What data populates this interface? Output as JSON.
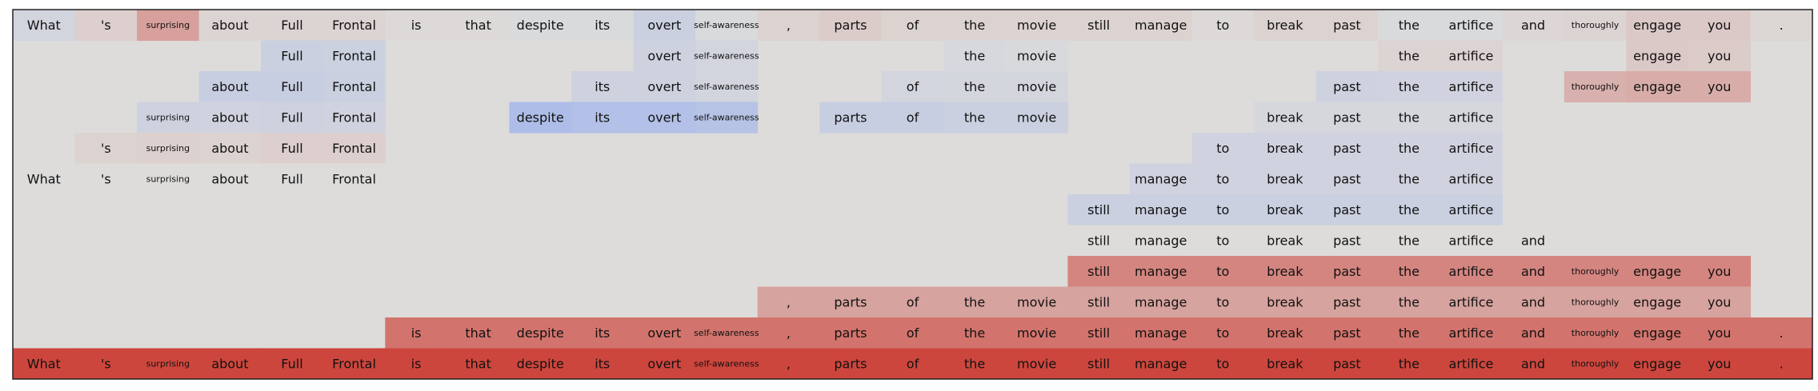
{
  "chart_data": {
    "type": "heatmap",
    "title": "",
    "xlabel": "",
    "ylabel": "",
    "grid": false,
    "tokens": [
      "What",
      "'s",
      "surprising",
      "about",
      "Full",
      "Frontal",
      "is",
      "that",
      "despite",
      "its",
      "overt",
      "self-awareness",
      ",",
      "parts",
      "of",
      "the",
      "movie",
      "still",
      "manage",
      "to",
      "break",
      "past",
      "the",
      "artifice",
      "and",
      "thoroughly",
      "engage",
      "you",
      "."
    ],
    "small_tokens": [
      "surprising",
      "self-awareness",
      "thoroughly"
    ],
    "rows": [
      {
        "spans": [
          [
            0,
            28
          ]
        ],
        "cells": {
          "0": -0.12,
          "1": 0.08,
          "2": 0.38,
          "3": 0.05,
          "4": 0.05,
          "5": 0.05,
          "6": 0.02,
          "7": 0.02,
          "8": -0.04,
          "9": -0.04,
          "10": -0.2,
          "11": -0.04,
          "12": 0.06,
          "13": 0.1,
          "14": 0.06,
          "15": 0.06,
          "16": 0.06,
          "17": 0.06,
          "18": 0.06,
          "19": 0.02,
          "20": 0.06,
          "21": 0.06,
          "22": -0.04,
          "23": -0.04,
          "24": 0.03,
          "25": 0.05,
          "26": 0.12,
          "27": 0.12,
          "28": 0.04
        }
      },
      {
        "spans": [
          [
            4,
            5
          ],
          [
            10,
            11
          ],
          [
            15,
            16
          ],
          [
            22,
            23
          ],
          [
            26,
            27
          ]
        ],
        "cells": {
          "4": -0.2,
          "5": -0.18,
          "10": -0.16,
          "11": -0.12,
          "15": -0.06,
          "16": -0.05,
          "22": 0.05,
          "23": 0.05,
          "26": 0.12,
          "27": 0.1
        }
      },
      {
        "spans": [
          [
            3,
            5
          ],
          [
            9,
            11
          ],
          [
            14,
            16
          ],
          [
            21,
            23
          ],
          [
            25,
            27
          ]
        ],
        "cells": {
          "3": -0.22,
          "4": -0.22,
          "5": -0.2,
          "9": -0.16,
          "10": -0.16,
          "11": -0.12,
          "14": -0.12,
          "15": -0.1,
          "16": -0.1,
          "21": -0.16,
          "22": -0.14,
          "23": -0.14,
          "25": 0.28,
          "26": 0.3,
          "27": 0.3
        }
      },
      {
        "spans": [
          [
            2,
            5
          ],
          [
            8,
            11
          ],
          [
            13,
            16
          ],
          [
            20,
            23
          ]
        ],
        "cells": {
          "2": -0.16,
          "3": -0.14,
          "4": -0.16,
          "5": -0.14,
          "8": -0.5,
          "9": -0.45,
          "10": -0.45,
          "11": -0.4,
          "13": -0.22,
          "14": -0.22,
          "15": -0.2,
          "16": -0.2,
          "20": -0.08,
          "21": -0.08,
          "22": -0.08,
          "23": -0.08
        }
      },
      {
        "spans": [
          [
            1,
            5
          ],
          [
            19,
            23
          ]
        ],
        "cells": {
          "1": 0.06,
          "2": 0.07,
          "3": 0.06,
          "4": 0.08,
          "5": 0.08,
          "19": -0.14,
          "20": -0.14,
          "21": -0.14,
          "22": -0.14,
          "23": -0.14
        }
      },
      {
        "spans": [
          [
            0,
            5
          ],
          [
            18,
            23
          ]
        ],
        "cells": {
          "0": 0.0,
          "1": 0.0,
          "2": 0.0,
          "3": 0.0,
          "4": 0.0,
          "5": 0.0,
          "18": -0.14,
          "19": -0.14,
          "20": -0.14,
          "21": -0.14,
          "22": -0.14,
          "23": -0.14
        }
      },
      {
        "spans": [
          [
            17,
            23
          ]
        ],
        "cells": {
          "17": -0.2,
          "18": -0.2,
          "19": -0.2,
          "20": -0.2,
          "21": -0.2,
          "22": -0.2,
          "23": -0.2
        }
      },
      {
        "spans": [
          [
            17,
            24
          ]
        ],
        "cells": {
          "17": 0.0,
          "18": 0.0,
          "19": 0.0,
          "20": 0.0,
          "21": 0.0,
          "22": 0.0,
          "23": 0.0,
          "24": 0.0
        }
      },
      {
        "spans": [
          [
            17,
            27
          ]
        ],
        "cells": {
          "17": 0.55,
          "18": 0.55,
          "19": 0.55,
          "20": 0.55,
          "21": 0.55,
          "22": 0.55,
          "23": 0.55,
          "24": 0.55,
          "25": 0.55,
          "26": 0.55,
          "27": 0.55
        }
      },
      {
        "spans": [
          [
            12,
            27
          ]
        ],
        "cells": {
          "12": 0.36,
          "13": 0.36,
          "14": 0.36,
          "15": 0.36,
          "16": 0.36,
          "17": 0.36,
          "18": 0.36,
          "19": 0.36,
          "20": 0.36,
          "21": 0.36,
          "22": 0.36,
          "23": 0.36,
          "24": 0.36,
          "25": 0.36,
          "26": 0.36,
          "27": 0.36
        }
      },
      {
        "spans": [
          [
            6,
            28
          ]
        ],
        "cells": {
          "6": 0.66,
          "7": 0.66,
          "8": 0.66,
          "9": 0.66,
          "10": 0.66,
          "11": 0.66,
          "12": 0.66,
          "13": 0.66,
          "14": 0.66,
          "15": 0.66,
          "16": 0.66,
          "17": 0.66,
          "18": 0.66,
          "19": 0.66,
          "20": 0.66,
          "21": 0.66,
          "22": 0.66,
          "23": 0.66,
          "24": 0.66,
          "25": 0.66,
          "26": 0.66,
          "27": 0.66,
          "28": 0.66
        }
      },
      {
        "spans": [
          [
            0,
            28
          ]
        ],
        "cells": {
          "0": 0.95,
          "1": 0.95,
          "2": 0.95,
          "3": 0.95,
          "4": 0.95,
          "5": 0.95,
          "6": 0.95,
          "7": 0.95,
          "8": 0.95,
          "9": 0.95,
          "10": 0.95,
          "11": 0.95,
          "12": 0.95,
          "13": 0.95,
          "14": 0.95,
          "15": 0.95,
          "16": 0.95,
          "17": 0.95,
          "18": 0.95,
          "19": 0.95,
          "20": 0.95,
          "21": 0.95,
          "22": 0.95,
          "23": 0.95,
          "24": 0.95,
          "25": 0.95,
          "26": 0.95,
          "27": 0.95,
          "28": 0.95
        }
      }
    ],
    "colormap": {
      "neutral": "#dddcdb",
      "negative_max": "#7f9ef5",
      "positive_max": "#cc3e35"
    },
    "frame_color": "#222222"
  }
}
